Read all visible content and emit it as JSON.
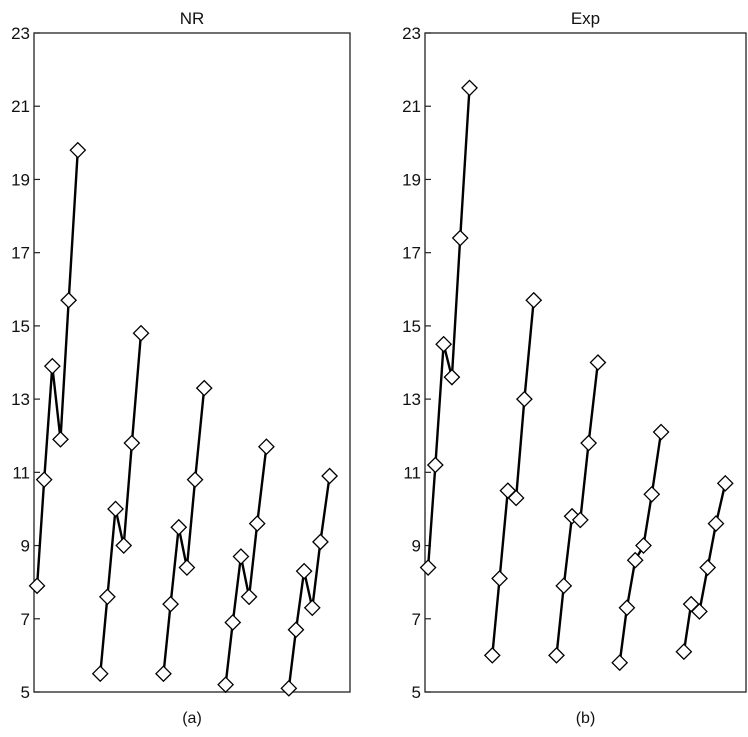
{
  "chart_data": [
    {
      "type": "line",
      "title": "NR",
      "panel_label": "(a)",
      "xlabel": "",
      "ylabel": "",
      "ylim": [
        5,
        23
      ],
      "yticks": [
        5,
        7,
        9,
        11,
        13,
        15,
        17,
        19,
        21,
        23
      ],
      "xlim": [
        0,
        31
      ],
      "grid": false,
      "series": [
        {
          "x": [
            0.3,
            1.0,
            1.8,
            2.6,
            3.4,
            4.3
          ],
          "y": [
            7.9,
            10.8,
            13.9,
            11.9,
            15.7,
            19.8
          ]
        },
        {
          "x": [
            6.5,
            7.2,
            8.0,
            8.8,
            9.6,
            10.5
          ],
          "y": [
            5.5,
            7.6,
            10.0,
            9.0,
            11.8,
            14.8
          ]
        },
        {
          "x": [
            12.7,
            13.4,
            14.2,
            15.0,
            15.8,
            16.7
          ],
          "y": [
            5.5,
            7.4,
            9.5,
            8.4,
            10.8,
            13.3
          ]
        },
        {
          "x": [
            18.8,
            19.5,
            20.3,
            21.1,
            21.9,
            22.8
          ],
          "y": [
            5.2,
            6.9,
            8.7,
            7.6,
            9.6,
            11.7
          ]
        },
        {
          "x": [
            25.0,
            25.7,
            26.5,
            27.3,
            28.1,
            29.0
          ],
          "y": [
            5.1,
            6.7,
            8.3,
            7.3,
            9.1,
            10.9
          ]
        }
      ]
    },
    {
      "type": "line",
      "title": "Exp",
      "panel_label": "(b)",
      "xlabel": "",
      "ylabel": "",
      "ylim": [
        5,
        23
      ],
      "yticks": [
        5,
        7,
        9,
        11,
        13,
        15,
        17,
        19,
        21,
        23
      ],
      "xlim": [
        0,
        31
      ],
      "grid": false,
      "series": [
        {
          "x": [
            0.3,
            1.0,
            1.8,
            2.6,
            3.4,
            4.3
          ],
          "y": [
            8.4,
            11.2,
            14.5,
            13.6,
            17.4,
            21.5
          ]
        },
        {
          "x": [
            6.5,
            7.2,
            8.0,
            8.8,
            9.6,
            10.5
          ],
          "y": [
            6.0,
            8.1,
            10.5,
            10.3,
            13.0,
            15.7
          ]
        },
        {
          "x": [
            12.7,
            13.4,
            14.2,
            15.0,
            15.8,
            16.7
          ],
          "y": [
            6.0,
            7.9,
            9.8,
            9.7,
            11.8,
            14.0
          ]
        },
        {
          "x": [
            18.8,
            19.5,
            20.3,
            21.1,
            21.9,
            22.8
          ],
          "y": [
            5.8,
            7.3,
            8.6,
            9.0,
            10.4,
            12.1
          ]
        },
        {
          "x": [
            25.0,
            25.7,
            26.5,
            27.3,
            28.1,
            29.0
          ],
          "y": [
            6.1,
            7.4,
            7.2,
            8.4,
            9.6,
            10.7
          ]
        }
      ]
    }
  ]
}
